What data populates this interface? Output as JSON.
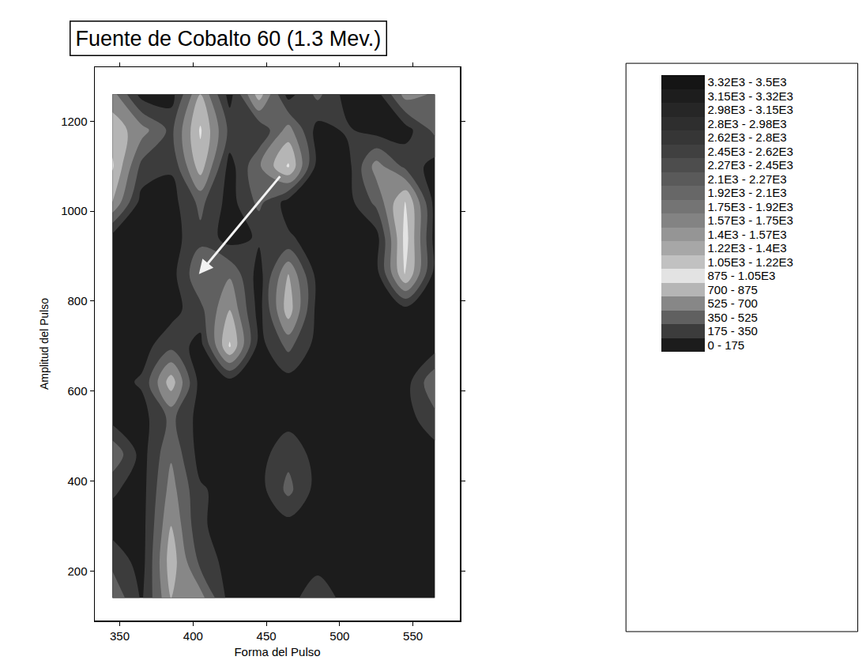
{
  "chart_data": {
    "type": "contour",
    "title": "Fuente de Cobalto 60 (1.3 Mev.)",
    "x_label": "Forma del Pulso",
    "y_label": "Amplitud del Pulso",
    "xlim": [
      333,
      582
    ],
    "xticks": [
      350,
      400,
      450,
      500,
      550
    ],
    "ylim": [
      90,
      1320
    ],
    "yticks": [
      200,
      400,
      600,
      800,
      1000,
      1200
    ],
    "x": [
      345,
      365,
      385,
      405,
      425,
      445,
      465,
      485,
      505,
      525,
      545,
      565
    ],
    "y": [
      140,
      220,
      300,
      380,
      460,
      540,
      620,
      700,
      780,
      860,
      940,
      1020,
      1100,
      1180,
      1260
    ],
    "z": [
      [
        500,
        150,
        700,
        600,
        100,
        100,
        100,
        300,
        100,
        100,
        100,
        100
      ],
      [
        300,
        100,
        800,
        300,
        100,
        100,
        100,
        100,
        100,
        100,
        100,
        100
      ],
      [
        100,
        100,
        700,
        200,
        100,
        100,
        100,
        100,
        100,
        100,
        100,
        100
      ],
      [
        200,
        100,
        600,
        200,
        100,
        100,
        400,
        100,
        100,
        100,
        100,
        100
      ],
      [
        500,
        100,
        500,
        100,
        100,
        100,
        300,
        100,
        100,
        100,
        100,
        100
      ],
      [
        100,
        100,
        400,
        100,
        100,
        100,
        100,
        100,
        100,
        100,
        100,
        300
      ],
      [
        100,
        200,
        800,
        100,
        100,
        100,
        100,
        100,
        100,
        100,
        100,
        500
      ],
      [
        100,
        100,
        300,
        100,
        900,
        100,
        400,
        100,
        100,
        100,
        100,
        100
      ],
      [
        100,
        100,
        100,
        300,
        700,
        100,
        800,
        100,
        100,
        100,
        100,
        100
      ],
      [
        100,
        100,
        100,
        500,
        500,
        100,
        700,
        100,
        100,
        100,
        900,
        100
      ],
      [
        100,
        100,
        100,
        300,
        100,
        200,
        200,
        100,
        100,
        100,
        950,
        100
      ],
      [
        700,
        100,
        100,
        400,
        100,
        400,
        100,
        100,
        100,
        400,
        900,
        100
      ],
      [
        900,
        300,
        200,
        800,
        100,
        500,
        900,
        100,
        100,
        600,
        300,
        100
      ],
      [
        800,
        600,
        300,
        900,
        300,
        200,
        600,
        100,
        200,
        100,
        100,
        400
      ],
      [
        600,
        100,
        100,
        700,
        100,
        800,
        100,
        400,
        100,
        100,
        600,
        500
      ]
    ],
    "levels": {
      "start": 0,
      "end": 3500,
      "size": 175
    },
    "colorbar": {
      "range": [
        0,
        3500
      ],
      "ticks": [
        {
          "value": 87.5,
          "label": "0 - 175"
        },
        {
          "value": 262.5,
          "label": "175 - 350"
        },
        {
          "value": 437.5,
          "label": "350 - 525"
        },
        {
          "value": 612.5,
          "label": "525 - 700"
        },
        {
          "value": 787.5,
          "label": "700 - 875"
        },
        {
          "value": 962.5,
          "label": "875 - 1.05E3"
        },
        {
          "value": 1137.5,
          "label": "1.05E3 - 1.22E3"
        },
        {
          "value": 1312.5,
          "label": "1.22E3 - 1.4E3"
        },
        {
          "value": 1487.5,
          "label": "1.4E3 - 1.57E3"
        },
        {
          "value": 1662.5,
          "label": "1.57E3 - 1.75E3"
        },
        {
          "value": 1837.5,
          "label": "1.75E3 - 1.92E3"
        },
        {
          "value": 2012.5,
          "label": "1.92E3 - 2.1E3"
        },
        {
          "value": 2187.5,
          "label": "2.1E3 - 2.27E3"
        },
        {
          "value": 2362.5,
          "label": "2.27E3 - 2.45E3"
        },
        {
          "value": 2537.5,
          "label": "2.45E3 - 2.62E3"
        },
        {
          "value": 2712.5,
          "label": "2.62E3 - 2.8E3"
        },
        {
          "value": 2887.5,
          "label": "2.8E3 - 2.98E3"
        },
        {
          "value": 3062.5,
          "label": "2.98E3 - 3.15E3"
        },
        {
          "value": 3237.5,
          "label": "3.15E3 - 3.32E3"
        },
        {
          "value": 3412.5,
          "label": "3.32E3 - 3.5E3"
        }
      ]
    }
  }
}
